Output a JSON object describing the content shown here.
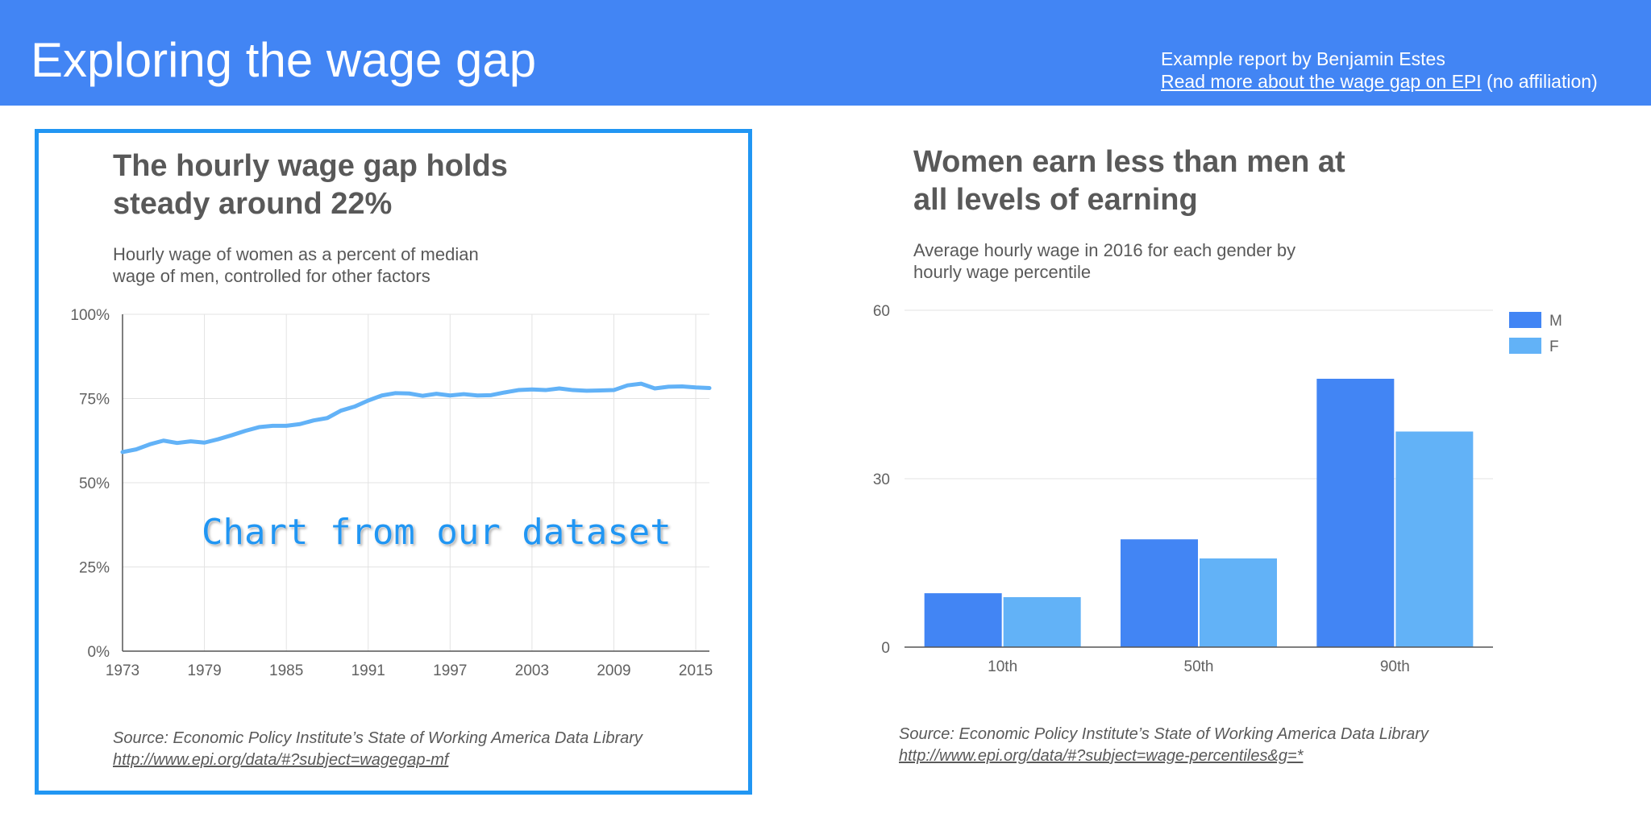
{
  "header": {
    "title": "Exploring the wage gap",
    "byline": "Example report by Benjamin Estes",
    "link_text": "Read more about the wage gap on EPI",
    "link_suffix": " (no affiliation)",
    "background": "#4285f4"
  },
  "left_panel": {
    "title_line1": "The hourly wage gap holds",
    "title_line2": "steady around 22%",
    "subtitle_line1": "Hourly wage of women as a percent of median",
    "subtitle_line2": "wage of men, controlled for other factors",
    "overlay_text": "Chart from our dataset",
    "source_line": "Source: Economic Policy Institute’s State of Working America Data Library",
    "source_url": "http://www.epi.org/data/#?subject=wagegap-mf",
    "border_color": "#2196f3"
  },
  "right_panel": {
    "title_line1": "Women earn less than men at",
    "title_line2": "all levels of earning",
    "subtitle_line1": "Average hourly wage in 2016 for each gender by",
    "subtitle_line2": "hourly wage percentile",
    "source_line": "Source: Economic Policy Institute’s State of Working America Data Library",
    "source_url": "http://www.epi.org/data/#?subject=wage-percentiles&g=*"
  },
  "chart_data": [
    {
      "type": "line",
      "title": "The hourly wage gap holds steady around 22%",
      "subtitle": "Hourly wage of women as a percent of median wage of men, controlled for other factors",
      "x": [
        1973,
        1974,
        1975,
        1976,
        1977,
        1978,
        1979,
        1980,
        1981,
        1982,
        1983,
        1984,
        1985,
        1986,
        1987,
        1988,
        1989,
        1990,
        1991,
        1992,
        1993,
        1994,
        1995,
        1996,
        1997,
        1998,
        1999,
        2000,
        2001,
        2002,
        2003,
        2004,
        2005,
        2006,
        2007,
        2008,
        2009,
        2010,
        2011,
        2012,
        2013,
        2014,
        2015,
        2016
      ],
      "series": [
        {
          "values": [
            59.1,
            59.9,
            61.4,
            62.5,
            61.8,
            62.3,
            61.9,
            62.9,
            64.1,
            65.4,
            66.5,
            66.9,
            66.9,
            67.4,
            68.5,
            69.2,
            71.4,
            72.6,
            74.4,
            75.9,
            76.6,
            76.5,
            75.8,
            76.4,
            75.9,
            76.3,
            75.9,
            76.0,
            76.8,
            77.5,
            77.7,
            77.5,
            78.0,
            77.5,
            77.3,
            77.4,
            77.5,
            78.9,
            79.4,
            78.0,
            78.5,
            78.6,
            78.3,
            78.1
          ],
          "color": "#62b2f7"
        }
      ],
      "x_ticks": [
        1973,
        1979,
        1985,
        1991,
        1997,
        2003,
        2009,
        2015
      ],
      "y_ticks": [
        "0%",
        "25%",
        "50%",
        "75%",
        "100%"
      ],
      "xlim": [
        1973,
        2016
      ],
      "ylim": [
        0,
        100
      ],
      "grid": true
    },
    {
      "type": "bar",
      "title": "Women earn less than men at all levels of earning",
      "subtitle": "Average hourly wage in 2016 for each gender by hourly wage percentile",
      "categories": [
        "10th",
        "50th",
        "90th"
      ],
      "series": [
        {
          "name": "M",
          "values": [
            9.6,
            19.2,
            47.8
          ],
          "color": "#4285f4"
        },
        {
          "name": "F",
          "values": [
            8.9,
            15.8,
            38.4
          ],
          "color": "#62b2f7"
        }
      ],
      "y_ticks": [
        "0",
        "30",
        "60"
      ],
      "ylim": [
        0,
        60
      ],
      "grid": true,
      "legend": "top-right"
    }
  ]
}
